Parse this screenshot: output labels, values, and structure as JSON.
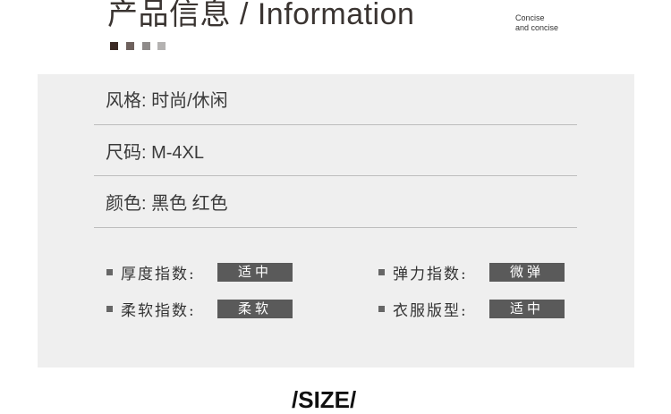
{
  "header": {
    "title": "产品信息 / Information",
    "tagline_line1": "Concise",
    "tagline_line2": "and concise",
    "swatch_colors": [
      "#3b2a24",
      "#6e615d",
      "#8f8b8a",
      "#b4b2b1"
    ]
  },
  "info": [
    {
      "text": "风格: 时尚/休闲"
    },
    {
      "text": "尺码: M-4XL"
    },
    {
      "text": "颜色: 黑色  红色"
    }
  ],
  "indices": [
    {
      "label": "厚度指数:",
      "value": "适中"
    },
    {
      "label": "弹力指数:",
      "value": "微弹"
    },
    {
      "label": "柔软指数:",
      "value": "柔软"
    },
    {
      "label": "衣服版型:",
      "value": "适中"
    }
  ],
  "footer": {
    "size_heading": "/SIZE/"
  }
}
